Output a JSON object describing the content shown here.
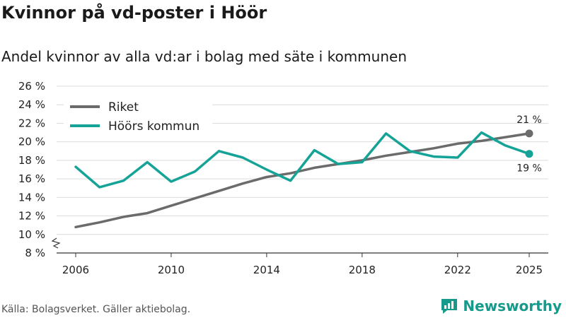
{
  "title": "Kvinnor på vd-poster i Höör",
  "subtitle": "Andel kvinnor av alla vd:ar i bolag med säte i kommunen",
  "source": "Källa: Bolagsverket. Gäller aktiebolag.",
  "brand": "Newsworthy",
  "colors": {
    "riket": "#6b6b6b",
    "hoor": "#15a397",
    "grid": "#dcdcdc",
    "brand": "#159a8c"
  },
  "chart_data": {
    "type": "line",
    "title": "Kvinnor på vd-poster i Höör",
    "subtitle": "Andel kvinnor av alla vd:ar i bolag med säte i kommunen",
    "xlabel": "",
    "ylabel": "",
    "xlim": [
      2005.2,
      2025.8
    ],
    "ylim": [
      8,
      26
    ],
    "x_ticks": [
      "2006",
      "2010",
      "2014",
      "2018",
      "2022",
      "2025"
    ],
    "x_tick_values": [
      2006,
      2010,
      2014,
      2018,
      2022,
      2025
    ],
    "y_ticks": [
      "26 %",
      "24 %",
      "22 %",
      "20 %",
      "18 %",
      "16 %",
      "14 %",
      "12 %",
      "10 %",
      "8 %"
    ],
    "y_tick_values": [
      26,
      24,
      22,
      20,
      18,
      16,
      14,
      12,
      10,
      8
    ],
    "legend_position": "top-left",
    "x": [
      2006,
      2007,
      2008,
      2009,
      2010,
      2011,
      2012,
      2013,
      2014,
      2015,
      2016,
      2017,
      2018,
      2019,
      2020,
      2021,
      2022,
      2023,
      2024,
      2025
    ],
    "series": [
      {
        "name": "Riket",
        "color": "#6b6b6b",
        "values": [
          10.8,
          11.3,
          11.9,
          12.3,
          13.1,
          13.9,
          14.7,
          15.5,
          16.2,
          16.6,
          17.2,
          17.6,
          18.0,
          18.5,
          18.9,
          19.3,
          19.8,
          20.1,
          20.5,
          20.9
        ],
        "end_label": "21 %"
      },
      {
        "name": "Höörs kommun",
        "color": "#15a397",
        "values": [
          17.3,
          15.1,
          15.8,
          17.8,
          15.7,
          16.8,
          19.0,
          18.3,
          17.0,
          15.8,
          19.1,
          17.6,
          17.8,
          20.9,
          19.0,
          18.4,
          18.3,
          21.0,
          19.6,
          18.7
        ],
        "end_label": "19 %"
      }
    ]
  }
}
